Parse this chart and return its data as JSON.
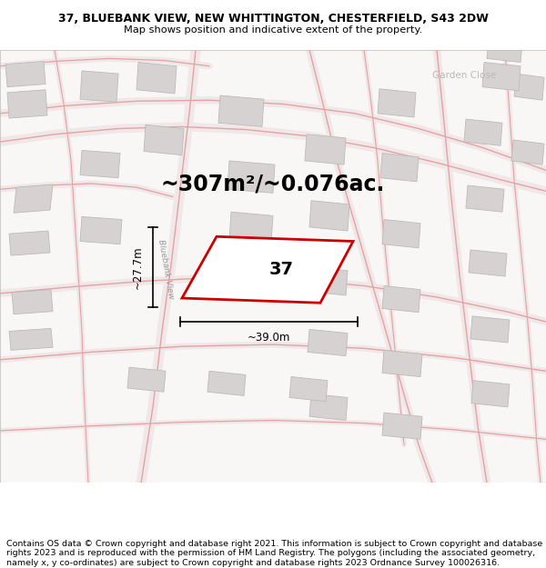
{
  "title_line1": "37, BLUEBANK VIEW, NEW WHITTINGTON, CHESTERFIELD, S43 2DW",
  "title_line2": "Map shows position and indicative extent of the property.",
  "footer_text": "Contains OS data © Crown copyright and database right 2021. This information is subject to Crown copyright and database rights 2023 and is reproduced with the permission of HM Land Registry. The polygons (including the associated geometry, namely x, y co-ordinates) are subject to Crown copyright and database rights 2023 Ordnance Survey 100026316.",
  "area_label": "~307m²/~0.076ac.",
  "width_label": "~39.0m",
  "height_label": "~27.7m",
  "plot_number": "37",
  "street_label": "Bluebank View",
  "garden_close_label": "Garden Close",
  "map_bg": "#f9f6f6",
  "building_fill": "#d6d2d2",
  "building_edge": "#bbbbbb",
  "road_color": "#e8a0a0",
  "road_bg": "#f0e8e8",
  "plot_color": "#cc0000",
  "plot_fill": "white",
  "plot_lw": 2.0,
  "title_fontsize": 9.0,
  "subtitle_fontsize": 8.2,
  "footer_fontsize": 6.8,
  "area_fontsize": 17,
  "label_fontsize": 8.5,
  "number_fontsize": 14,
  "garden_fontsize": 7.5,
  "street_fontsize": 6.5
}
